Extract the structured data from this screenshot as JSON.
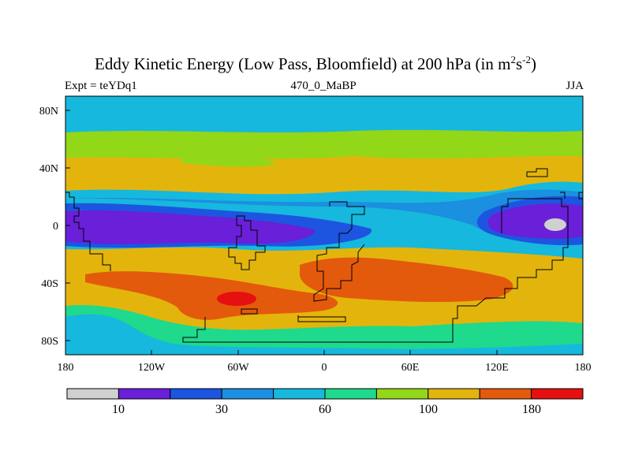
{
  "title": {
    "main": "Eddy Kinetic Energy (Low Pass, Bloomfield) at 200 hPa (in m",
    "sup1": "2",
    "mid": "s",
    "sup2": "-2",
    "close": ")"
  },
  "left_label": "Expt = teYDq1",
  "center_label": "470_0_MaBP",
  "right_label": "JJA",
  "chart_data": {
    "type": "contour-map",
    "variable": "Eddy Kinetic Energy (Low Pass, Bloomfield)",
    "level": "200 hPa",
    "units": "m2 s-2",
    "season": "JJA",
    "x_ticks": [
      "180",
      "120W",
      "60W",
      "0",
      "60E",
      "120E",
      "180"
    ],
    "x_tick_lons": [
      -180,
      -120,
      -60,
      0,
      60,
      120,
      180
    ],
    "y_ticks": [
      "80N",
      "40N",
      "0",
      "40S",
      "80S"
    ],
    "y_tick_lats": [
      80,
      40,
      0,
      -40,
      -80
    ],
    "lon_range": [
      -180,
      180
    ],
    "lat_range": [
      -90,
      90
    ],
    "colorbar": {
      "labels": [
        "10",
        "30",
        "60",
        "100",
        "180"
      ],
      "label_positions": [
        1,
        3,
        5,
        7,
        9
      ],
      "colors": [
        "#d0d0d0",
        "#6a1fd8",
        "#1d55e0",
        "#1b8fe0",
        "#16b8dd",
        "#1fd98c",
        "#92d718",
        "#e3b50c",
        "#e35a0c",
        "#e61010"
      ]
    },
    "regions": [
      {
        "name": "north-polar-cyan",
        "level": 4
      },
      {
        "name": "northern-green-band",
        "level": 6
      },
      {
        "name": "northern-midlatitude-jet-yellow",
        "level": 7
      },
      {
        "name": "equatorial-lightblue",
        "level": 3
      },
      {
        "name": "equatorial-blue",
        "level": 2
      },
      {
        "name": "equatorial-purple",
        "level": 1
      },
      {
        "name": "west-pacific-gray-minimum",
        "level": 0
      },
      {
        "name": "southern-jet-yellow",
        "level": 7
      },
      {
        "name": "southern-jet-orange",
        "level": 8
      },
      {
        "name": "southern-jet-red-maximum",
        "level": 9
      },
      {
        "name": "south-polar-green",
        "level": 5
      },
      {
        "name": "south-polar-cyan",
        "level": 4
      }
    ]
  }
}
